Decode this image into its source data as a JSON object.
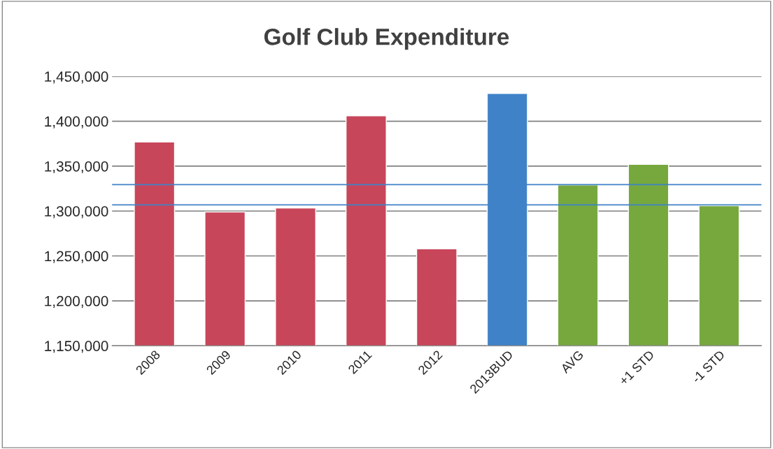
{
  "chart_data": {
    "type": "bar",
    "title": "Golf Club Expenditure",
    "categories": [
      "2008",
      "2009",
      "2010",
      "2011",
      "2012",
      "2013BUD",
      "AVG",
      "+1 STD",
      "-1 STD"
    ],
    "values": [
      1377000,
      1299000,
      1303500,
      1406000,
      1258000,
      1431000,
      1329000,
      1352000,
      1306000
    ],
    "colors": [
      "#c8465a",
      "#c8465a",
      "#c8465a",
      "#c8465a",
      "#c8465a",
      "#3f82c8",
      "#77a83e",
      "#77a83e",
      "#77a83e"
    ],
    "ylim": [
      1150000,
      1450000
    ],
    "yticks": [
      {
        "value": 1150000,
        "label": "1,150,000"
      },
      {
        "value": 1200000,
        "label": "1,200,000"
      },
      {
        "value": 1250000,
        "label": "1,250,000"
      },
      {
        "value": 1300000,
        "label": "1,300,000"
      },
      {
        "value": 1350000,
        "label": "1,350,000"
      },
      {
        "value": 1400000,
        "label": "1,400,000"
      },
      {
        "value": 1450000,
        "label": "1,450,000"
      }
    ],
    "ref_lines": [
      {
        "axis": "y",
        "value": 1329400,
        "color": "#3f82c8"
      },
      {
        "axis": "y",
        "value": 1306800,
        "color": "#3f82c8"
      }
    ],
    "grid": "y",
    "legend": false
  }
}
